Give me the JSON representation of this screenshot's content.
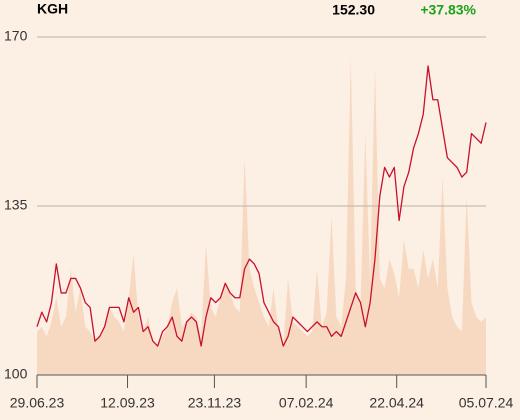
{
  "chart_data": {
    "type": "line",
    "title": "KGH",
    "last_price": "152.30",
    "change": "+37.83%",
    "change_color": "#1aa31a",
    "x": [
      "2023-06-29",
      "2023-07-03",
      "2023-07-07",
      "2023-07-11",
      "2023-07-15",
      "2023-07-19",
      "2023-07-23",
      "2023-07-27",
      "2023-07-31",
      "2023-08-04",
      "2023-08-08",
      "2023-08-12",
      "2023-08-16",
      "2023-08-20",
      "2023-08-24",
      "2023-08-28",
      "2023-09-01",
      "2023-09-05",
      "2023-09-09",
      "2023-09-13",
      "2023-09-17",
      "2023-09-21",
      "2023-09-25",
      "2023-09-29",
      "2023-10-03",
      "2023-10-07",
      "2023-10-11",
      "2023-10-15",
      "2023-10-19",
      "2023-10-23",
      "2023-10-27",
      "2023-10-31",
      "2023-11-04",
      "2023-11-08",
      "2023-11-12",
      "2023-11-16",
      "2023-11-20",
      "2023-11-24",
      "2023-11-28",
      "2023-12-02",
      "2023-12-06",
      "2023-12-10",
      "2023-12-14",
      "2023-12-18",
      "2023-12-22",
      "2023-12-26",
      "2023-12-30",
      "2024-01-03",
      "2024-01-07",
      "2024-01-11",
      "2024-01-15",
      "2024-01-19",
      "2024-01-23",
      "2024-01-27",
      "2024-01-31",
      "2024-02-04",
      "2024-02-08",
      "2024-02-12",
      "2024-02-16",
      "2024-02-20",
      "2024-02-24",
      "2024-02-28",
      "2024-03-03",
      "2024-03-07",
      "2024-03-11",
      "2024-03-15",
      "2024-03-19",
      "2024-03-23",
      "2024-03-27",
      "2024-03-31",
      "2024-04-04",
      "2024-04-08",
      "2024-04-12",
      "2024-04-16",
      "2024-04-20",
      "2024-04-24",
      "2024-04-28",
      "2024-05-02",
      "2024-05-06",
      "2024-05-10",
      "2024-05-14",
      "2024-05-18",
      "2024-05-22",
      "2024-05-26",
      "2024-05-30",
      "2024-06-03",
      "2024-06-07",
      "2024-06-11",
      "2024-06-15",
      "2024-06-19",
      "2024-06-23",
      "2024-06-27",
      "2024-07-01",
      "2024-07-05"
    ],
    "series": [
      {
        "color": "#c8102e",
        "values": [
          110,
          113,
          111,
          115,
          123,
          117,
          117,
          120,
          120,
          118,
          115,
          114,
          107,
          108,
          110,
          114,
          114,
          114,
          111,
          116,
          113,
          114,
          109,
          110,
          107,
          106,
          109,
          110,
          112,
          108,
          107,
          111,
          112,
          111,
          106,
          112,
          116,
          115,
          116,
          119,
          117,
          116,
          116,
          122,
          124,
          123,
          121,
          115,
          113,
          111,
          110,
          106,
          108,
          112,
          111,
          110,
          109,
          110,
          111,
          110,
          110,
          108,
          109,
          108,
          111,
          114,
          117,
          115,
          110,
          115,
          124,
          137,
          143,
          141,
          143,
          132,
          139,
          142,
          147,
          150,
          154,
          164,
          157,
          157,
          151,
          145,
          144,
          143,
          141,
          142,
          150,
          149,
          148,
          152.3
        ]
      }
    ],
    "volume": {
      "type": "area",
      "color": "#f7d9c2",
      "values": [
        109,
        110,
        108,
        111,
        116,
        110,
        112,
        122,
        113,
        118,
        110,
        109,
        107,
        108,
        110,
        114,
        112,
        111,
        109,
        116,
        125,
        112,
        109,
        112,
        107,
        106,
        108,
        110,
        115,
        118,
        110,
        111,
        113,
        112,
        108,
        127,
        114,
        112,
        116,
        119,
        117,
        114,
        113,
        145,
        122,
        118,
        115,
        112,
        110,
        118,
        109,
        106,
        120,
        111,
        110,
        109,
        108,
        109,
        122,
        110,
        113,
        133,
        112,
        110,
        120,
        166,
        118,
        114,
        150,
        119,
        164,
        120,
        118,
        124,
        121,
        116,
        128,
        122,
        122,
        118,
        126,
        120,
        124,
        118,
        141,
        118,
        112,
        110,
        109,
        137,
        115,
        112,
        111,
        112
      ]
    },
    "xlim": [
      "2023-06-29",
      "2024-07-05"
    ],
    "xticks": [
      {
        "value": "2023-06-29",
        "label": "29.06.23"
      },
      {
        "value": "2023-09-12",
        "label": "12.09.23"
      },
      {
        "value": "2023-11-23",
        "label": "23.11.23"
      },
      {
        "value": "2024-02-07",
        "label": "07.02.24"
      },
      {
        "value": "2024-04-22",
        "label": "22.04.24"
      },
      {
        "value": "2024-07-05",
        "label": "05.07.24"
      }
    ],
    "ylim": [
      100,
      170
    ],
    "yticks": [
      100,
      135,
      170
    ],
    "grid": true
  }
}
